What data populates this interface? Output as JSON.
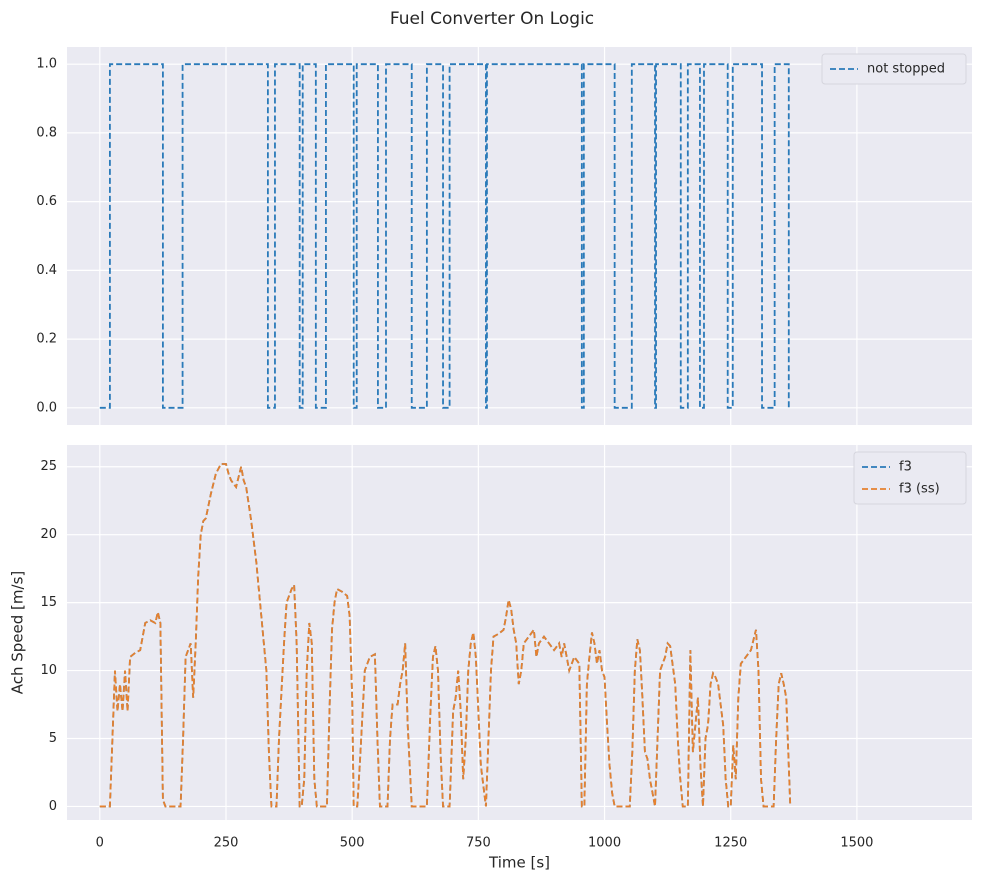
{
  "title": "Fuel Converter On Logic",
  "chart_data": [
    {
      "type": "line",
      "drawstyle": "steps-post",
      "x": [
        0,
        20,
        125,
        164,
        333,
        347,
        396,
        402,
        428,
        448,
        503,
        509,
        551,
        567,
        618,
        648,
        680,
        693,
        765,
        767,
        955,
        959,
        1020,
        1054,
        1100,
        1102,
        1151,
        1165,
        1189,
        1197,
        1244,
        1254,
        1312,
        1337,
        1365,
        1368
      ],
      "series": [
        {
          "name": "not stopped",
          "color": "#2a7ab9",
          "values": [
            0,
            1,
            0,
            1,
            0,
            1,
            0,
            1,
            0,
            1,
            0,
            1,
            0,
            1,
            0,
            1,
            0,
            1,
            0,
            1,
            0,
            1,
            0,
            1,
            0,
            1,
            0,
            1,
            0,
            1,
            0,
            1,
            0,
            1,
            0,
            0
          ]
        }
      ],
      "xlim": [
        -65,
        1728
      ],
      "ylim": [
        -0.05,
        1.05
      ],
      "yticks": [
        {
          "value": 0,
          "label": "0.0"
        },
        {
          "value": 0.2,
          "label": "0.2"
        },
        {
          "value": 0.4,
          "label": "0.4"
        },
        {
          "value": 0.6,
          "label": "0.6"
        },
        {
          "value": 0.8,
          "label": "0.8"
        },
        {
          "value": 1,
          "label": "1.0"
        }
      ],
      "grid": true,
      "legend": "upper right"
    },
    {
      "type": "line",
      "drawstyle": "default",
      "x": [
        0,
        10,
        20,
        25,
        30,
        35,
        40,
        45,
        50,
        55,
        60,
        70,
        80,
        90,
        100,
        110,
        115,
        120,
        125,
        130,
        150,
        160,
        165,
        170,
        175,
        180,
        185,
        190,
        195,
        200,
        205,
        210,
        220,
        230,
        240,
        250,
        255,
        260,
        270,
        280,
        285,
        290,
        300,
        310,
        320,
        330,
        335,
        340,
        350,
        355,
        365,
        370,
        380,
        385,
        390,
        396,
        400,
        405,
        410,
        415,
        420,
        425,
        430,
        450,
        455,
        460,
        465,
        470,
        480,
        490,
        495,
        500,
        503,
        510,
        515,
        525,
        535,
        545,
        550,
        555,
        570,
        575,
        580,
        590,
        595,
        600,
        605,
        610,
        618,
        648,
        655,
        660,
        665,
        670,
        675,
        680,
        693,
        700,
        705,
        710,
        715,
        720,
        725,
        730,
        735,
        740,
        745,
        750,
        755,
        765,
        770,
        775,
        780,
        790,
        800,
        805,
        810,
        815,
        820,
        825,
        830,
        835,
        840,
        850,
        860,
        865,
        870,
        880,
        890,
        900,
        910,
        915,
        920,
        925,
        930,
        940,
        950,
        955,
        960,
        965,
        970,
        975,
        980,
        985,
        990,
        995,
        1000,
        1005,
        1010,
        1015,
        1020,
        1050,
        1055,
        1060,
        1065,
        1070,
        1075,
        1080,
        1085,
        1090,
        1100,
        1105,
        1110,
        1120,
        1125,
        1130,
        1140,
        1145,
        1150,
        1155,
        1165,
        1170,
        1175,
        1180,
        1185,
        1190,
        1195,
        1200,
        1205,
        1210,
        1215,
        1220,
        1225,
        1235,
        1240,
        1245,
        1250,
        1255,
        1260,
        1265,
        1270,
        1280,
        1290,
        1300,
        1305,
        1310,
        1315,
        1335,
        1340,
        1345,
        1350,
        1355,
        1360,
        1365,
        1368
      ],
      "series": [
        {
          "name": "f3",
          "color": "#2a7ab9",
          "values": [
            0,
            0,
            0,
            5,
            10,
            7,
            9,
            7,
            10,
            7,
            11,
            11.3,
            11.5,
            13.5,
            13.7,
            13.5,
            14.3,
            13.5,
            0.5,
            0,
            0,
            0,
            5,
            11,
            11.5,
            12,
            8,
            12,
            17,
            20,
            21,
            21.2,
            23,
            24.5,
            25.2,
            25.2,
            24.5,
            24,
            23.5,
            25,
            24,
            23.5,
            21,
            18,
            14,
            10,
            4,
            0,
            0,
            5,
            12,
            15,
            16,
            16.3,
            12,
            0,
            0,
            2,
            10,
            13.5,
            12,
            2,
            0,
            0,
            7,
            13,
            15,
            16,
            15.8,
            15.5,
            14,
            8,
            0,
            0,
            3,
            10,
            11,
            11.2,
            5,
            0,
            0,
            5,
            7.5,
            7.5,
            9,
            10,
            12,
            6,
            0,
            0,
            7,
            11,
            11.8,
            10,
            4,
            0,
            0,
            7,
            8,
            10,
            7,
            2,
            5,
            10,
            12,
            12.8,
            11,
            7,
            3,
            0,
            5,
            10,
            12.5,
            12.7,
            13,
            14,
            15.2,
            14.5,
            13,
            12,
            9,
            10,
            12,
            12.5,
            13,
            11,
            12,
            12.5,
            12,
            11.5,
            12,
            11,
            12,
            11,
            10,
            11,
            10.5,
            0,
            0,
            9,
            11,
            12.8,
            12,
            10.5,
            11.5,
            10,
            9.5,
            6,
            3,
            1,
            0,
            0,
            4,
            10,
            12.3,
            11.5,
            8,
            4,
            3.5,
            2,
            0,
            5,
            10,
            11,
            12,
            11.8,
            9,
            5,
            2,
            0,
            0,
            11.5,
            4,
            6,
            8,
            3,
            0,
            5,
            6,
            9,
            9.8,
            9.5,
            9,
            6,
            2,
            0,
            0,
            4.5,
            2,
            8,
            10.5,
            11,
            11.5,
            13,
            10,
            2,
            0,
            0,
            5,
            9,
            9.8,
            9,
            8,
            3,
            0
          ]
        },
        {
          "name": "f3 (ss)",
          "color": "#e6812f",
          "values": [
            0,
            0,
            0,
            5,
            10,
            7,
            9,
            7,
            10,
            7,
            11,
            11.3,
            11.5,
            13.5,
            13.7,
            13.5,
            14.3,
            13.5,
            0.5,
            0,
            0,
            0,
            5,
            11,
            11.5,
            12,
            8,
            12,
            17,
            20,
            21,
            21.2,
            23,
            24.5,
            25.2,
            25.2,
            24.5,
            24,
            23.5,
            25,
            24,
            23.5,
            21,
            18,
            14,
            10,
            4,
            0,
            0,
            5,
            12,
            15,
            16,
            16.3,
            12,
            0,
            0,
            2,
            10,
            13.5,
            12,
            2,
            0,
            0,
            7,
            13,
            15,
            16,
            15.8,
            15.5,
            14,
            8,
            0,
            0,
            3,
            10,
            11,
            11.2,
            5,
            0,
            0,
            5,
            7.5,
            7.5,
            9,
            10,
            12,
            6,
            0,
            0,
            7,
            11,
            11.8,
            10,
            4,
            0,
            0,
            7,
            8,
            10,
            7,
            2,
            5,
            10,
            12,
            12.8,
            11,
            7,
            3,
            0,
            5,
            10,
            12.5,
            12.7,
            13,
            14,
            15.2,
            14.5,
            13,
            12,
            9,
            10,
            12,
            12.5,
            13,
            11,
            12,
            12.5,
            12,
            11.5,
            12,
            11,
            12,
            11,
            10,
            11,
            10.5,
            0,
            0,
            9,
            11,
            12.8,
            12,
            10.5,
            11.5,
            10,
            9.5,
            6,
            3,
            1,
            0,
            0,
            4,
            10,
            12.3,
            11.5,
            8,
            4,
            3.5,
            2,
            0,
            5,
            10,
            11,
            12,
            11.8,
            9,
            5,
            2,
            0,
            0,
            11.5,
            4,
            6,
            8,
            3,
            0,
            5,
            6,
            9,
            9.8,
            9.5,
            9,
            6,
            2,
            0,
            0,
            4.5,
            2,
            8,
            10.5,
            11,
            11.5,
            13,
            10,
            2,
            0,
            0,
            5,
            9,
            9.8,
            9,
            8,
            3,
            0
          ]
        }
      ],
      "xlabel": "Time [s]",
      "ylabel": "Ach Speed [m/s]",
      "xlim": [
        -65,
        1728
      ],
      "ylim": [
        -1.0,
        26.6
      ],
      "xticks": [
        0,
        250,
        500,
        750,
        1000,
        1250,
        1500
      ],
      "yticks": [
        0,
        5,
        10,
        15,
        20,
        25
      ],
      "grid": true,
      "legend": "upper right"
    }
  ]
}
